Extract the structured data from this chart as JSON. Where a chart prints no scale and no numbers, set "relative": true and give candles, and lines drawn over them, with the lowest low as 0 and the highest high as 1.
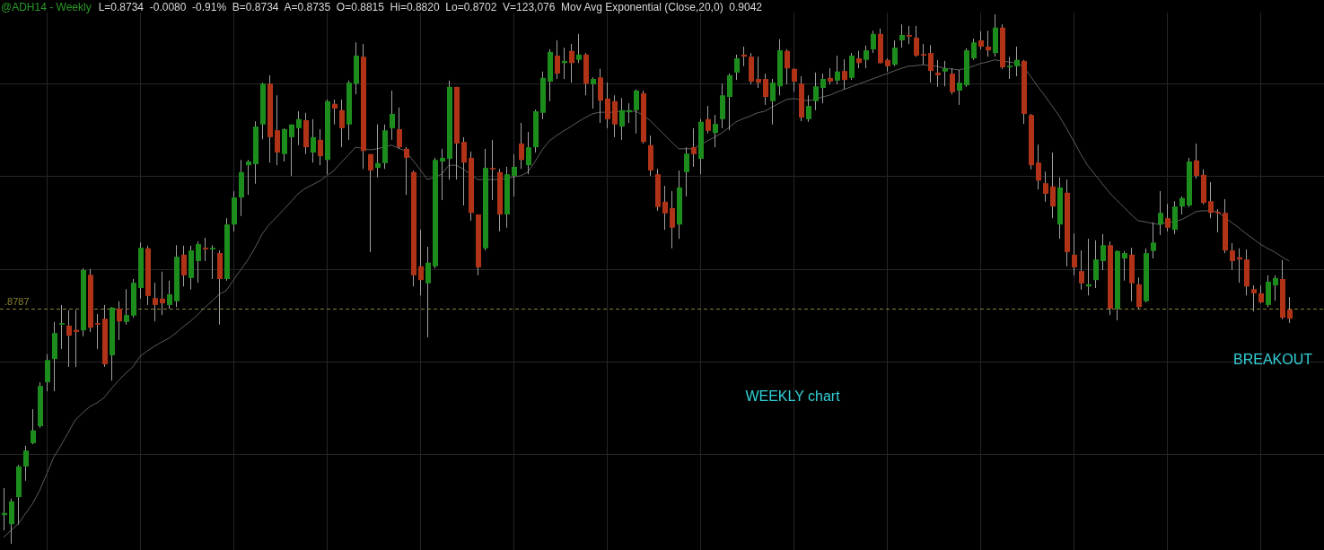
{
  "chart_data": {
    "type": "candlestick",
    "title": "@ADH14 - Weekly",
    "subtitle": "L=0.8734  -0.0080  -0.91%  B=0.8734  A=0.8735  O=0.8815  Hi=0.8820  Lo=0.8702  V=123,076  Mov Avg Exponential (Close,20,0)  0.9042",
    "relative": true,
    "grid": true,
    "marker": "none",
    "categories": [
      null,
      null,
      null,
      null,
      null,
      null,
      null,
      null,
      null,
      null,
      null,
      null,
      null,
      null,
      null,
      null,
      null,
      null,
      null,
      null,
      null,
      null,
      null,
      null,
      null,
      null,
      null,
      null,
      null,
      null,
      null,
      null,
      null,
      null,
      null,
      null,
      null,
      null,
      null,
      null,
      null,
      null,
      null,
      null,
      null,
      null,
      null,
      null,
      null,
      null,
      null,
      null,
      null,
      null,
      null,
      null,
      null,
      null,
      null,
      null,
      null,
      null,
      null,
      null,
      null,
      null,
      null,
      null,
      null,
      null,
      null,
      null,
      null,
      null,
      null,
      null,
      null,
      null,
      null,
      null,
      null,
      null,
      null,
      null,
      null,
      null,
      null,
      null,
      null,
      null,
      null,
      null,
      null,
      null,
      null,
      null,
      null,
      null,
      null,
      null,
      null,
      null,
      null,
      null,
      null,
      null,
      null,
      null,
      null,
      null,
      null,
      null,
      null,
      null,
      null,
      null,
      null,
      null,
      null,
      null,
      null,
      null,
      null,
      null,
      null,
      null,
      null,
      null,
      null,
      null,
      null,
      null,
      null,
      null,
      null,
      null,
      null,
      null,
      null,
      null,
      null,
      null,
      null,
      null,
      null,
      null,
      null,
      null,
      null,
      null,
      null,
      null,
      null,
      null,
      null,
      null,
      null,
      null,
      null,
      null,
      null,
      null,
      null,
      null,
      null,
      null,
      null,
      null,
      null,
      null,
      null,
      null,
      null,
      null,
      null,
      null,
      null,
      null,
      null,
      null
    ],
    "ohlc": [
      [
        0.054,
        0.105,
        0.025,
        0.058
      ],
      [
        0.037,
        0.085,
        0,
        0.08
      ],
      [
        0.088,
        0.149,
        0.036,
        0.146
      ],
      [
        0.146,
        0.185,
        0.119,
        0.176
      ],
      [
        0.19,
        0.254,
        0.188,
        0.214
      ],
      [
        0.222,
        0.305,
        0.219,
        0.298
      ],
      [
        0.305,
        0.358,
        0.288,
        0.347
      ],
      [
        0.349,
        0.419,
        0.288,
        0.398
      ],
      [
        0.414,
        0.451,
        0.368,
        0.417
      ],
      [
        0.412,
        0.441,
        0.334,
        0.393
      ],
      [
        0.404,
        0.441,
        0.334,
        0.4
      ],
      [
        0.403,
        0.52,
        0.392,
        0.517
      ],
      [
        0.508,
        0.519,
        0.4,
        0.408
      ],
      [
        0.417,
        0.434,
        0.368,
        0.414
      ],
      [
        0.425,
        0.451,
        0.334,
        0.339
      ],
      [
        0.356,
        0.447,
        0.308,
        0.446
      ],
      [
        0.444,
        0.458,
        0.385,
        0.42
      ],
      [
        0.419,
        0.481,
        0.414,
        0.432
      ],
      [
        0.431,
        0.5,
        0.427,
        0.493
      ],
      [
        0.483,
        0.569,
        0.463,
        0.559
      ],
      [
        0.558,
        0.563,
        0.451,
        0.468
      ],
      [
        0.464,
        0.493,
        0.42,
        0.451
      ],
      [
        0.463,
        0.514,
        0.432,
        0.454
      ],
      [
        0.451,
        0.497,
        0.444,
        0.471
      ],
      [
        0.458,
        0.564,
        0.447,
        0.542
      ],
      [
        0.546,
        0.563,
        0.486,
        0.507
      ],
      [
        0.502,
        0.563,
        0.48,
        0.554
      ],
      [
        0.534,
        0.571,
        0.493,
        0.566
      ],
      [
        0.559,
        0.578,
        0.534,
        0.556
      ],
      [
        0.556,
        0.564,
        0.5,
        0.559
      ],
      [
        0.549,
        0.554,
        0.414,
        0.5
      ],
      [
        0.5,
        0.615,
        0.497,
        0.603
      ],
      [
        0.603,
        0.666,
        0.59,
        0.654
      ],
      [
        0.654,
        0.725,
        0.619,
        0.702
      ],
      [
        0.715,
        0.725,
        0.659,
        0.722
      ],
      [
        0.717,
        0.798,
        0.68,
        0.788
      ],
      [
        0.792,
        0.871,
        0.764,
        0.869
      ],
      [
        0.869,
        0.885,
        0.72,
        0.768
      ],
      [
        0.781,
        0.847,
        0.715,
        0.739
      ],
      [
        0.736,
        0.785,
        0.722,
        0.783
      ],
      [
        0.768,
        0.792,
        0.695,
        0.792
      ],
      [
        0.785,
        0.817,
        0.753,
        0.802
      ],
      [
        0.8,
        0.814,
        0.736,
        0.749
      ],
      [
        0.739,
        0.802,
        0.72,
        0.768
      ],
      [
        0.763,
        0.783,
        0.715,
        0.732
      ],
      [
        0.725,
        0.839,
        0.698,
        0.836
      ],
      [
        0.831,
        0.839,
        0.792,
        0.822
      ],
      [
        0.819,
        0.839,
        0.749,
        0.785
      ],
      [
        0.792,
        0.875,
        0.763,
        0.871
      ],
      [
        0.869,
        0.947,
        0.849,
        0.922
      ],
      [
        0.92,
        0.944,
        0.708,
        0.742
      ],
      [
        0.736,
        0.736,
        0.551,
        0.705
      ],
      [
        0.71,
        0.792,
        0.692,
        0.719
      ],
      [
        0.719,
        0.792,
        0.708,
        0.781
      ],
      [
        0.785,
        0.856,
        0.763,
        0.812
      ],
      [
        0.783,
        0.824,
        0.746,
        0.749
      ],
      [
        0.746,
        0.749,
        0.659,
        0.729
      ],
      [
        0.702,
        0.705,
        0.486,
        0.507
      ],
      [
        0.524,
        0.593,
        0.469,
        0.498
      ],
      [
        0.492,
        0.561,
        0.39,
        0.531
      ],
      [
        0.524,
        0.729,
        0.52,
        0.725
      ],
      [
        0.722,
        0.746,
        0.649,
        0.729
      ],
      [
        0.727,
        0.875,
        0.688,
        0.863
      ],
      [
        0.863,
        0.863,
        0.688,
        0.756
      ],
      [
        0.759,
        0.768,
        0.639,
        0.72
      ],
      [
        0.729,
        0.741,
        0.61,
        0.625
      ],
      [
        0.622,
        0.622,
        0.507,
        0.522
      ],
      [
        0.558,
        0.746,
        0.554,
        0.71
      ],
      [
        0.71,
        0.763,
        0.649,
        0.707
      ],
      [
        0.702,
        0.708,
        0.59,
        0.622
      ],
      [
        0.622,
        0.712,
        0.597,
        0.698
      ],
      [
        0.695,
        0.736,
        0.656,
        0.712
      ],
      [
        0.756,
        0.795,
        0.708,
        0.725
      ],
      [
        0.715,
        0.778,
        0.698,
        0.749
      ],
      [
        0.749,
        0.82,
        0.739,
        0.817
      ],
      [
        0.814,
        0.892,
        0.802,
        0.88
      ],
      [
        0.873,
        0.934,
        0.836,
        0.929
      ],
      [
        0.922,
        0.951,
        0.878,
        0.888
      ],
      [
        0.908,
        0.937,
        0.878,
        0.912
      ],
      [
        0.931,
        0.944,
        0.871,
        0.908
      ],
      [
        0.914,
        0.963,
        0.908,
        0.924
      ],
      [
        0.924,
        0.927,
        0.847,
        0.869
      ],
      [
        0.868,
        0.881,
        0.822,
        0.878
      ],
      [
        0.881,
        0.897,
        0.795,
        0.837
      ],
      [
        0.841,
        0.871,
        0.785,
        0.802
      ],
      [
        0.836,
        0.847,
        0.768,
        0.792
      ],
      [
        0.788,
        0.842,
        0.763,
        0.819
      ],
      [
        0.815,
        0.832,
        0.795,
        0.819
      ],
      [
        0.819,
        0.858,
        0.775,
        0.856
      ],
      [
        0.851,
        0.856,
        0.756,
        0.759
      ],
      [
        0.753,
        0.771,
        0.695,
        0.705
      ],
      [
        0.698,
        0.708,
        0.629,
        0.636
      ],
      [
        0.646,
        0.676,
        0.593,
        0.624
      ],
      [
        0.634,
        0.666,
        0.558,
        0.597
      ],
      [
        0.603,
        0.705,
        0.576,
        0.673
      ],
      [
        0.702,
        0.749,
        0.656,
        0.737
      ],
      [
        0.749,
        0.785,
        0.712,
        0.736
      ],
      [
        0.727,
        0.802,
        0.698,
        0.797
      ],
      [
        0.802,
        0.827,
        0.775,
        0.78
      ],
      [
        0.776,
        0.81,
        0.749,
        0.793
      ],
      [
        0.802,
        0.869,
        0.785,
        0.847
      ],
      [
        0.844,
        0.888,
        0.781,
        0.885
      ],
      [
        0.89,
        0.924,
        0.876,
        0.917
      ],
      [
        0.924,
        0.939,
        0.902,
        0.92
      ],
      [
        0.92,
        0.927,
        0.868,
        0.873
      ],
      [
        0.878,
        0.92,
        0.861,
        0.871
      ],
      [
        0.878,
        0.888,
        0.829,
        0.844
      ],
      [
        0.836,
        0.878,
        0.792,
        0.871
      ],
      [
        0.864,
        0.953,
        0.847,
        0.932
      ],
      [
        0.931,
        0.934,
        0.868,
        0.898
      ],
      [
        0.897,
        0.898,
        0.854,
        0.873
      ],
      [
        0.869,
        0.883,
        0.798,
        0.805
      ],
      [
        0.802,
        0.847,
        0.797,
        0.827
      ],
      [
        0.836,
        0.89,
        0.819,
        0.864
      ],
      [
        0.861,
        0.888,
        0.832,
        0.878
      ],
      [
        0.88,
        0.898,
        0.868,
        0.873
      ],
      [
        0.875,
        0.922,
        0.868,
        0.892
      ],
      [
        0.893,
        0.915,
        0.858,
        0.876
      ],
      [
        0.88,
        0.927,
        0.876,
        0.922
      ],
      [
        0.917,
        0.931,
        0.898,
        0.908
      ],
      [
        0.914,
        0.941,
        0.898,
        0.932
      ],
      [
        0.934,
        0.969,
        0.927,
        0.963
      ],
      [
        0.963,
        0.973,
        0.907,
        0.908
      ],
      [
        0.914,
        0.917,
        0.892,
        0.902
      ],
      [
        0.905,
        0.951,
        0.902,
        0.937
      ],
      [
        0.951,
        0.981,
        0.937,
        0.961
      ],
      [
        0.961,
        0.978,
        0.944,
        0.958
      ],
      [
        0.956,
        0.978,
        0.92,
        0.922
      ],
      [
        0.925,
        0.944,
        0.905,
        0.922
      ],
      [
        0.927,
        0.942,
        0.871,
        0.893
      ],
      [
        0.89,
        0.914,
        0.863,
        0.885
      ],
      [
        0.892,
        0.912,
        0.864,
        0.898
      ],
      [
        0.888,
        0.898,
        0.849,
        0.853
      ],
      [
        0.856,
        0.895,
        0.829,
        0.871
      ],
      [
        0.866,
        0.936,
        0.863,
        0.932
      ],
      [
        0.917,
        0.954,
        0.914,
        0.947
      ],
      [
        0.951,
        0.968,
        0.934,
        0.939
      ],
      [
        0.939,
        0.969,
        0.92,
        0.932
      ],
      [
        0.927,
        1,
        0.92,
        0.975
      ],
      [
        0.975,
        0.981,
        0.897,
        0.9
      ],
      [
        0.9,
        0.92,
        0.878,
        0.903
      ],
      [
        0.902,
        0.939,
        0.883,
        0.914
      ],
      [
        0.912,
        0.914,
        0.793,
        0.812
      ],
      [
        0.81,
        0.812,
        0.707,
        0.715
      ],
      [
        0.72,
        0.754,
        0.669,
        0.686
      ],
      [
        0.681,
        0.703,
        0.646,
        0.661
      ],
      [
        0.675,
        0.739,
        0.615,
        0.637
      ],
      [
        0.603,
        0.692,
        0.576,
        0.673
      ],
      [
        0.663,
        0.688,
        0.524,
        0.551
      ],
      [
        0.546,
        0.586,
        0.507,
        0.522
      ],
      [
        0.515,
        0.554,
        0.48,
        0.492
      ],
      [
        0.486,
        0.576,
        0.469,
        0.49
      ],
      [
        0.498,
        0.573,
        0.483,
        0.537
      ],
      [
        0.534,
        0.585,
        0.517,
        0.564
      ],
      [
        0.564,
        0.571,
        0.432,
        0.444
      ],
      [
        0.444,
        0.554,
        0.422,
        0.553
      ],
      [
        0.539,
        0.553,
        0.497,
        0.549
      ],
      [
        0.546,
        0.559,
        0.458,
        0.492
      ],
      [
        0.49,
        0.503,
        0.444,
        0.447
      ],
      [
        0.458,
        0.558,
        0.456,
        0.549
      ],
      [
        0.553,
        0.607,
        0.539,
        0.569
      ],
      [
        0.603,
        0.666,
        0.583,
        0.625
      ],
      [
        0.615,
        0.642,
        0.59,
        0.597
      ],
      [
        0.593,
        0.647,
        0.585,
        0.637
      ],
      [
        0.637,
        0.656,
        0.622,
        0.653
      ],
      [
        0.639,
        0.729,
        0.636,
        0.722
      ],
      [
        0.724,
        0.756,
        0.69,
        0.695
      ],
      [
        0.697,
        0.707,
        0.641,
        0.644
      ],
      [
        0.647,
        0.683,
        0.615,
        0.625
      ],
      [
        0.627,
        0.632,
        0.588,
        0.624
      ],
      [
        0.625,
        0.651,
        0.549,
        0.554
      ],
      [
        0.554,
        0.568,
        0.517,
        0.534
      ],
      [
        0.541,
        0.558,
        0.493,
        0.537
      ],
      [
        0.537,
        0.556,
        0.469,
        0.486
      ],
      [
        0.481,
        0.488,
        0.439,
        0.473
      ],
      [
        0.473,
        0.488,
        0.454,
        0.456
      ],
      [
        0.451,
        0.507,
        0.447,
        0.495
      ],
      [
        0.488,
        0.507,
        0.459,
        0.502
      ],
      [
        0.5,
        0.536,
        0.424,
        0.427
      ],
      [
        0.442,
        0.466,
        0.417,
        0.425
      ]
    ],
    "colors": [
      "#1c8c1c",
      "#1c8c1c",
      "#1c8c1c",
      "#1c8c1c",
      "#1c8c1c",
      "#1c8c1c",
      "#1c8c1c",
      "#1c8c1c",
      "#1c8c1c",
      "#b03318",
      "#b03318",
      "#1c8c1c",
      "#b03318",
      "#b03318",
      "#b03318",
      "#1c8c1c",
      "#b03318",
      "#1c8c1c",
      "#1c8c1c",
      "#1c8c1c",
      "#b03318",
      "#b03318",
      "#b03318",
      "#1c8c1c",
      "#1c8c1c",
      "#b03318",
      "#1c8c1c",
      "#1c8c1c",
      "#b03318",
      "#1c8c1c",
      "#b03318",
      "#1c8c1c",
      "#1c8c1c",
      "#1c8c1c",
      "#1c8c1c",
      "#1c8c1c",
      "#1c8c1c",
      "#b03318",
      "#b03318",
      "#1c8c1c",
      "#1c8c1c",
      "#1c8c1c",
      "#b03318",
      "#1c8c1c",
      "#b03318",
      "#1c8c1c",
      "#b03318",
      "#b03318",
      "#1c8c1c",
      "#1c8c1c",
      "#b03318",
      "#b03318",
      "#1c8c1c",
      "#1c8c1c",
      "#1c8c1c",
      "#b03318",
      "#b03318",
      "#b03318",
      "#b03318",
      "#1c8c1c",
      "#1c8c1c",
      "#1c8c1c",
      "#1c8c1c",
      "#b03318",
      "#b03318",
      "#b03318",
      "#b03318",
      "#1c8c1c",
      "#b03318",
      "#b03318",
      "#1c8c1c",
      "#1c8c1c",
      "#b03318",
      "#1c8c1c",
      "#1c8c1c",
      "#1c8c1c",
      "#1c8c1c",
      "#b03318",
      "#1c8c1c",
      "#b03318",
      "#1c8c1c",
      "#b03318",
      "#1c8c1c",
      "#b03318",
      "#b03318",
      "#b03318",
      "#1c8c1c",
      "#1c8c1c",
      "#1c8c1c",
      "#b03318",
      "#b03318",
      "#b03318",
      "#b03318",
      "#b03318",
      "#1c8c1c",
      "#1c8c1c",
      "#b03318",
      "#1c8c1c",
      "#b03318",
      "#1c8c1c",
      "#1c8c1c",
      "#1c8c1c",
      "#1c8c1c",
      "#b03318",
      "#b03318",
      "#b03318",
      "#b03318",
      "#1c8c1c",
      "#1c8c1c",
      "#b03318",
      "#b03318",
      "#b03318",
      "#1c8c1c",
      "#1c8c1c",
      "#1c8c1c",
      "#b03318",
      "#1c8c1c",
      "#b03318",
      "#1c8c1c",
      "#b03318",
      "#1c8c1c",
      "#1c8c1c",
      "#b03318",
      "#b03318",
      "#1c8c1c",
      "#1c8c1c",
      "#b03318",
      "#b03318",
      "#b03318",
      "#b03318",
      "#b03318",
      "#1c8c1c",
      "#b03318",
      "#1c8c1c",
      "#1c8c1c",
      "#1c8c1c",
      "#b03318",
      "#b03318",
      "#1c8c1c",
      "#b03318",
      "#1c8c1c",
      "#1c8c1c",
      "#b03318",
      "#b03318",
      "#b03318",
      "#b03318",
      "#b03318",
      "#1c8c1c",
      "#b03318",
      "#b03318",
      "#b03318",
      "#1c8c1c",
      "#1c8c1c",
      "#1c8c1c",
      "#b03318",
      "#1c8c1c",
      "#1c8c1c",
      "#b03318",
      "#b03318",
      "#1c8c1c",
      "#1c8c1c",
      "#1c8c1c",
      "#b03318",
      "#1c8c1c",
      "#1c8c1c",
      "#1c8c1c",
      "#b03318",
      "#b03318",
      "#b03318",
      "#b03318",
      "#b03318",
      "#b03318",
      "#b03318",
      "#b03318",
      "#b03318",
      "#b03318",
      "#1c8c1c",
      "#1c8c1c",
      "#b03318",
      "#b03318"
    ],
    "series": [
      {
        "type": "line",
        "color": "#5c5c5c",
        "values": [
          0.012,
          0.025,
          0.037,
          0.056,
          0.075,
          0.1,
          0.132,
          0.164,
          0.186,
          0.21,
          0.234,
          0.247,
          0.259,
          0.266,
          0.276,
          0.293,
          0.308,
          0.322,
          0.334,
          0.354,
          0.364,
          0.373,
          0.381,
          0.388,
          0.398,
          0.41,
          0.42,
          0.432,
          0.446,
          0.458,
          0.471,
          0.478,
          0.498,
          0.517,
          0.536,
          0.559,
          0.585,
          0.603,
          0.617,
          0.631,
          0.646,
          0.661,
          0.671,
          0.678,
          0.685,
          0.695,
          0.705,
          0.72,
          0.734,
          0.749,
          0.747,
          0.744,
          0.746,
          0.749,
          0.753,
          0.747,
          0.742,
          0.724,
          0.707,
          0.688,
          0.692,
          0.698,
          0.715,
          0.715,
          0.708,
          0.698,
          0.688,
          0.688,
          0.688,
          0.688,
          0.69,
          0.693,
          0.695,
          0.702,
          0.722,
          0.744,
          0.761,
          0.771,
          0.78,
          0.788,
          0.797,
          0.805,
          0.812,
          0.815,
          0.815,
          0.815,
          0.817,
          0.817,
          0.817,
          0.81,
          0.8,
          0.786,
          0.773,
          0.759,
          0.746,
          0.746,
          0.746,
          0.753,
          0.761,
          0.768,
          0.776,
          0.786,
          0.797,
          0.803,
          0.808,
          0.814,
          0.817,
          0.825,
          0.832,
          0.839,
          0.841,
          0.839,
          0.837,
          0.839,
          0.844,
          0.847,
          0.853,
          0.858,
          0.863,
          0.868,
          0.873,
          0.878,
          0.883,
          0.888,
          0.893,
          0.898,
          0.902,
          0.903,
          0.905,
          0.903,
          0.902,
          0.898,
          0.897,
          0.895,
          0.898,
          0.902,
          0.907,
          0.91,
          0.914,
          0.912,
          0.91,
          0.908,
          0.902,
          0.883,
          0.864,
          0.846,
          0.827,
          0.808,
          0.785,
          0.761,
          0.736,
          0.714,
          0.697,
          0.68,
          0.663,
          0.649,
          0.636,
          0.622,
          0.61,
          0.608,
          0.605,
          0.603,
          0.607,
          0.608,
          0.612,
          0.619,
          0.627,
          0.629,
          0.629,
          0.627,
          0.617,
          0.607,
          0.597,
          0.586,
          0.576,
          0.566,
          0.558,
          0.551,
          0.542,
          0.534
        ]
      }
    ],
    "ref_lines": [
      {
        "axis": "y",
        "value": 0.444,
        "color": "#8a8030",
        "line_style": "dashed"
      }
    ],
    "annotations": [
      ".8787",
      "WEEKLY chart",
      "BREAKOUT"
    ]
  }
}
